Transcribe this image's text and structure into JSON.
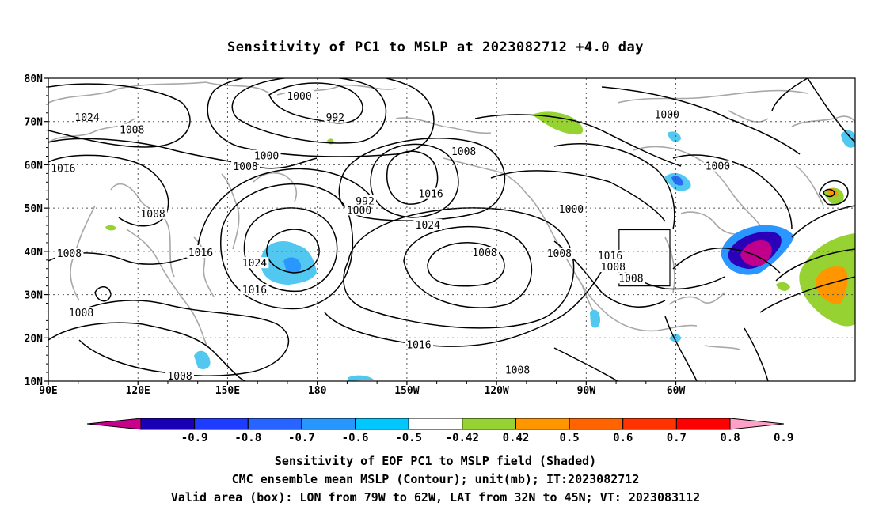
{
  "title": "Sensitivity of PC1 to MSLP at 2023082712 +4.0 day",
  "lat_labels": [
    "80N",
    "70N",
    "60N",
    "50N",
    "40N",
    "30N",
    "20N",
    "10N"
  ],
  "lon_labels": [
    "90E",
    "120E",
    "150E",
    "180",
    "150W",
    "120W",
    "90W",
    "60W"
  ],
  "contour_labels": [
    {
      "text": "1000",
      "lon": 174,
      "lat": 75.8
    },
    {
      "text": "1024",
      "lon": 103,
      "lat": 70.9
    },
    {
      "text": "992",
      "lon": 186,
      "lat": 70.9
    },
    {
      "text": "1008",
      "lon": 118,
      "lat": 68.0
    },
    {
      "text": "1000",
      "lon": 297,
      "lat": 71.5
    },
    {
      "text": "1000",
      "lon": 163,
      "lat": 62.0
    },
    {
      "text": "1008",
      "lon": 156,
      "lat": 59.5
    },
    {
      "text": "1016",
      "lon": 95,
      "lat": 59.1
    },
    {
      "text": "1008",
      "lon": 229,
      "lat": 63.0
    },
    {
      "text": "1000",
      "lon": 314,
      "lat": 59.6
    },
    {
      "text": "1016",
      "lon": 218,
      "lat": 53.2
    },
    {
      "text": "992",
      "lon": 196,
      "lat": 51.5
    },
    {
      "text": "1000",
      "lon": 194,
      "lat": 49.4
    },
    {
      "text": "1000",
      "lon": 265,
      "lat": 49.7
    },
    {
      "text": "1008",
      "lon": 125,
      "lat": 48.6
    },
    {
      "text": "1024",
      "lon": 217,
      "lat": 46.0
    },
    {
      "text": "1016",
      "lon": 141,
      "lat": 39.6
    },
    {
      "text": "1008",
      "lon": 97,
      "lat": 39.4
    },
    {
      "text": "1024",
      "lon": 159,
      "lat": 37.2
    },
    {
      "text": "1008",
      "lon": 236,
      "lat": 39.6
    },
    {
      "text": "1008",
      "lon": 261,
      "lat": 39.4
    },
    {
      "text": "1016",
      "lon": 278,
      "lat": 38.9
    },
    {
      "text": "1008",
      "lon": 279,
      "lat": 36.3
    },
    {
      "text": "1008",
      "lon": 285,
      "lat": 33.7
    },
    {
      "text": "1016",
      "lon": 159,
      "lat": 31.0
    },
    {
      "text": "1008",
      "lon": 101,
      "lat": 25.7
    },
    {
      "text": "1016",
      "lon": 214,
      "lat": 18.3
    },
    {
      "text": "1008",
      "lon": 247,
      "lat": 12.5
    },
    {
      "text": "1008",
      "lon": 134,
      "lat": 11.1
    }
  ],
  "valid_box": {
    "lon_min": -79,
    "lon_max": -62,
    "lat_min": 32,
    "lat_max": 45
  },
  "colorbar": {
    "labels": [
      "-0.9",
      "-0.8",
      "-0.7",
      "-0.6",
      "-0.5",
      "-0.42",
      "0.42",
      "0.5",
      "0.6",
      "0.7",
      "0.8",
      "0.9"
    ],
    "colors": [
      "#c8008c",
      "#1a00b4",
      "#1e3cff",
      "#2864ff",
      "#2896ff",
      "#00c8ff",
      "#ffffff",
      "#96d232",
      "#ff9600",
      "#ff6400",
      "#ff3200",
      "#ff0000",
      "#ffa0c8"
    ]
  },
  "shading_colors": {
    "negative_light": "#52c8f0",
    "negative_medium": "#2a6af0",
    "negative_dark": "#2a00b8",
    "negative_extreme": "#c0008c",
    "positive_light": "#96d232",
    "positive_medium": "#ff9600"
  },
  "captions": [
    "Sensitivity of EOF PC1 to MSLP field (Shaded)",
    "CMC ensemble mean MSLP (Contour); unit(mb); IT:2023082712",
    "Valid area (box): LON from 79W to 62W, LAT from 32N to 45N; VT: 2023083112"
  ]
}
